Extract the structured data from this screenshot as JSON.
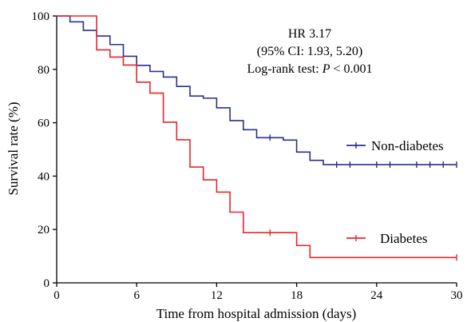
{
  "chart_data": {
    "type": "line",
    "step": true,
    "title": "",
    "xlabel": "Time from hospital admission (days)",
    "ylabel": "Survival rate (%)",
    "xlim": [
      0,
      30
    ],
    "ylim": [
      0,
      100
    ],
    "xticks": [
      0,
      6,
      12,
      18,
      24,
      30
    ],
    "yticks": [
      0,
      20,
      40,
      60,
      80,
      100
    ],
    "grid": false,
    "annotation": {
      "line1": "HR 3.17",
      "line2": "(95% CI: 1.93, 5.20)",
      "line3_prefix": "Log-rank test: ",
      "line3_italic": "P",
      "line3_suffix": " < 0.001"
    },
    "series": [
      {
        "name": "Non-diabetes",
        "color": "#2b2f8f",
        "x": [
          0,
          1,
          2,
          3,
          4,
          5,
          6,
          7,
          8,
          9,
          10,
          11,
          12,
          13,
          14,
          15,
          16,
          17,
          18,
          19,
          20,
          30
        ],
        "y": [
          100,
          97.8,
          94.6,
          92.5,
          89.3,
          84.9,
          81.5,
          79.2,
          77.1,
          73.6,
          70.0,
          69.2,
          65.6,
          60.8,
          57.4,
          54.4,
          54.4,
          53.5,
          49.0,
          45.9,
          44.3,
          44.3
        ],
        "censor_x": [
          16,
          21,
          22,
          24,
          25,
          27,
          28,
          29,
          30
        ],
        "censor_y": [
          54.4,
          44.3,
          44.3,
          44.3,
          44.3,
          44.3,
          44.3,
          44.3,
          44.3
        ]
      },
      {
        "name": "Diabetes",
        "color": "#e8262b",
        "x": [
          0,
          3,
          4,
          5,
          6,
          7,
          8,
          9,
          10,
          11,
          12,
          13,
          14,
          15,
          16,
          18,
          19,
          30
        ],
        "y": [
          100,
          87.3,
          84.6,
          81.6,
          75.2,
          71.1,
          60.2,
          53.6,
          43.4,
          38.6,
          34.0,
          26.5,
          18.8,
          18.8,
          18.8,
          14.0,
          9.5,
          9.5
        ],
        "censor_x": [
          16,
          30
        ],
        "censor_y": [
          18.8,
          9.5
        ]
      }
    ],
    "legend": "right"
  }
}
